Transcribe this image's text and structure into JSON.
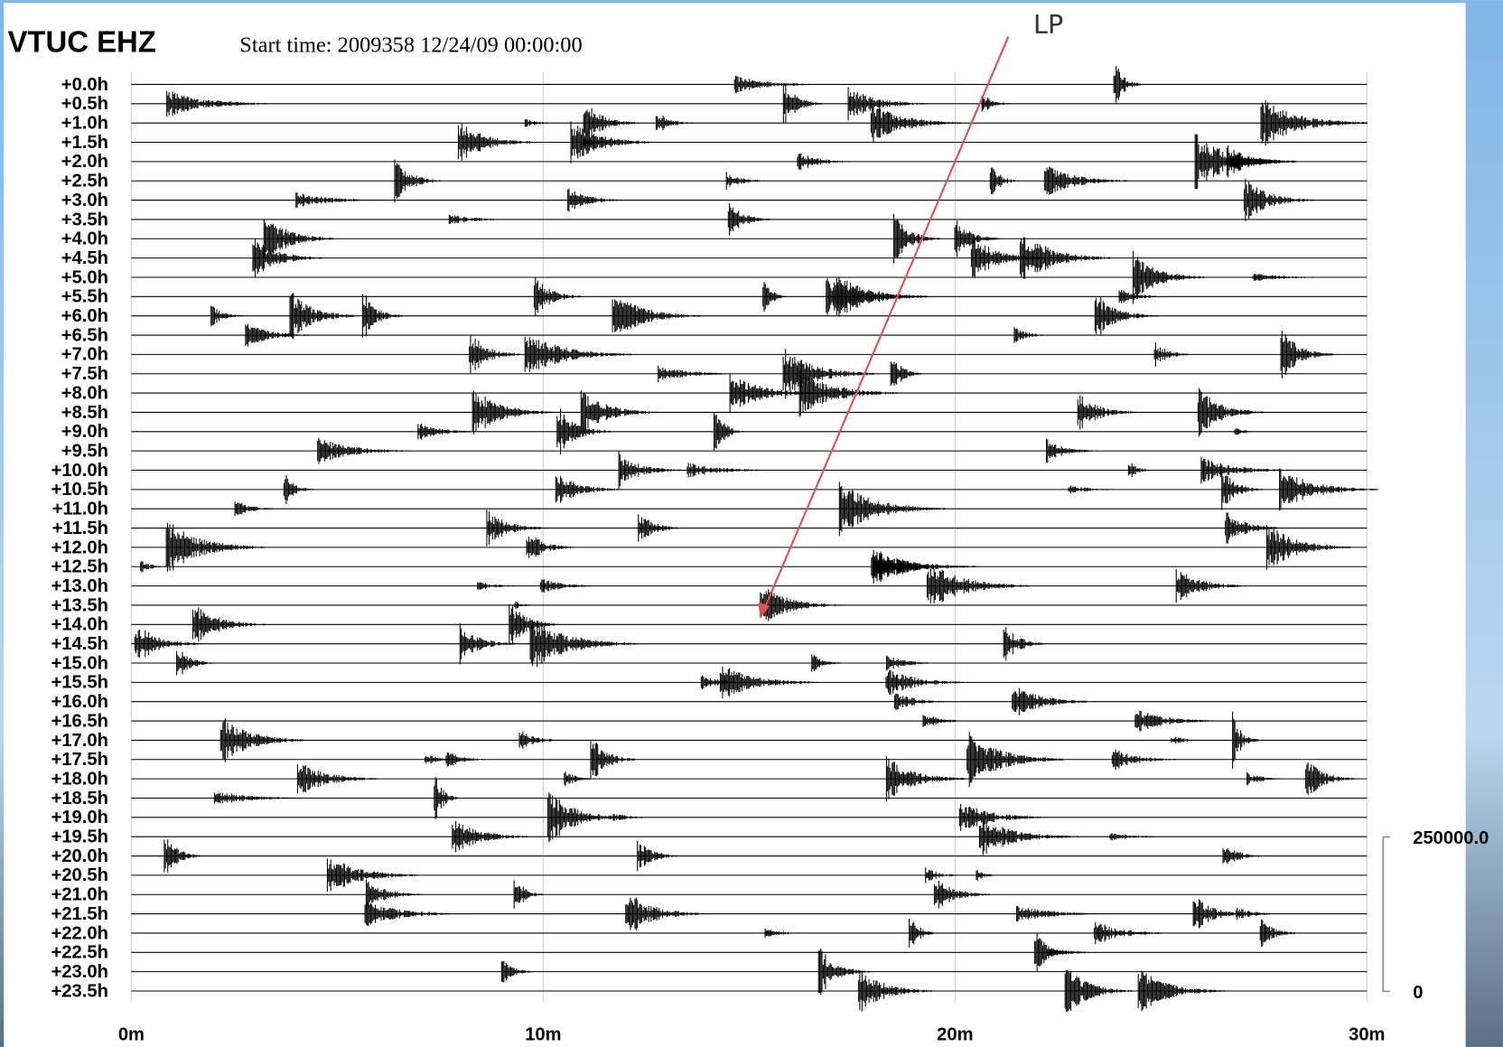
{
  "header": {
    "station": "VTUC EHZ",
    "start_time": "Start time: 2009358 12/24/09 00:00:00"
  },
  "annotation": "LP",
  "rows": [
    "+0.0h",
    "+0.5h",
    "+1.0h",
    "+1.5h",
    "+2.0h",
    "+2.5h",
    "+3.0h",
    "+3.5h",
    "+4.0h",
    "+4.5h",
    "+5.0h",
    "+5.5h",
    "+6.0h",
    "+6.5h",
    "+7.0h",
    "+7.5h",
    "+8.0h",
    "+8.5h",
    "+9.0h",
    "+9.5h",
    "+10.0h",
    "+10.5h",
    "+11.0h",
    "+11.5h",
    "+12.0h",
    "+12.5h",
    "+13.0h",
    "+13.5h",
    "+14.0h",
    "+14.5h",
    "+15.0h",
    "+15.5h",
    "+16.0h",
    "+16.5h",
    "+17.0h",
    "+17.5h",
    "+18.0h",
    "+18.5h",
    "+19.0h",
    "+19.5h",
    "+20.0h",
    "+20.5h",
    "+21.0h",
    "+21.5h",
    "+22.0h",
    "+22.5h",
    "+23.0h",
    "+23.5h"
  ],
  "x_axis": [
    "0m",
    "10m",
    "20m",
    "30m"
  ],
  "scale": {
    "max": "250000.0",
    "min": "0"
  }
}
